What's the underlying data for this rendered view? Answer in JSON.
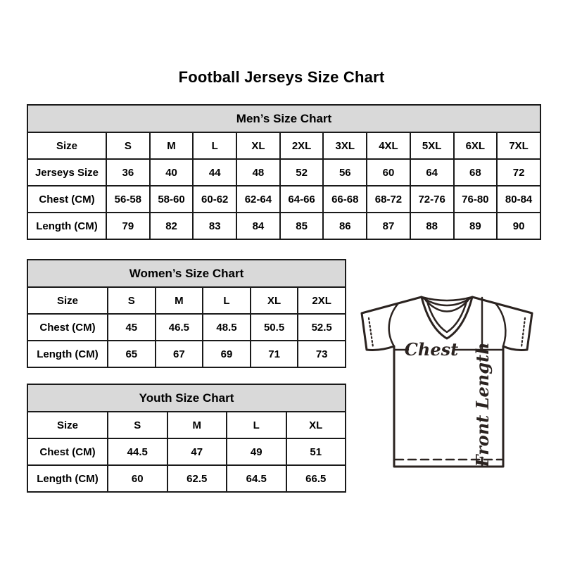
{
  "page": {
    "title": "Football Jerseys Size Chart"
  },
  "chart_data": [
    {
      "type": "table",
      "title": "Men’s Size Chart",
      "rows": [
        [
          "Size",
          "S",
          "M",
          "L",
          "XL",
          "2XL",
          "3XL",
          "4XL",
          "5XL",
          "6XL",
          "7XL"
        ],
        [
          "Jerseys Size",
          "36",
          "40",
          "44",
          "48",
          "52",
          "56",
          "60",
          "64",
          "68",
          "72"
        ],
        [
          "Chest (CM)",
          "56-58",
          "58-60",
          "60-62",
          "62-64",
          "64-66",
          "66-68",
          "68-72",
          "72-76",
          "76-80",
          "80-84"
        ],
        [
          "Length (CM)",
          "79",
          "82",
          "83",
          "84",
          "85",
          "86",
          "87",
          "88",
          "89",
          "90"
        ]
      ]
    },
    {
      "type": "table",
      "title": "Women’s Size Chart",
      "rows": [
        [
          "Size",
          "S",
          "M",
          "L",
          "XL",
          "2XL"
        ],
        [
          "Chest (CM)",
          "45",
          "46.5",
          "48.5",
          "50.5",
          "52.5"
        ],
        [
          "Length (CM)",
          "65",
          "67",
          "69",
          "71",
          "73"
        ]
      ]
    },
    {
      "type": "table",
      "title": "Youth Size Chart",
      "rows": [
        [
          "Size",
          "S",
          "M",
          "L",
          "XL"
        ],
        [
          "Chest (CM)",
          "44.5",
          "47",
          "49",
          "51"
        ],
        [
          "Length (CM)",
          "60",
          "62.5",
          "64.5",
          "66.5"
        ]
      ]
    }
  ],
  "diagram": {
    "chest_label": "Chest",
    "front_length_label": "Front Length"
  },
  "colors": {
    "table_header_bg": "#d9d9d9",
    "table_border": "#1a1a1a",
    "text": "#000000",
    "diagram_line": "#2b2320"
  }
}
